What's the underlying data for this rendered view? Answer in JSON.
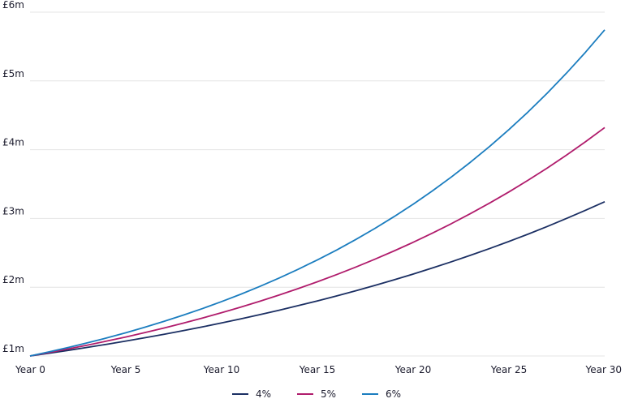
{
  "chart_data": {
    "type": "line",
    "x": [
      0,
      1,
      2,
      3,
      4,
      5,
      6,
      7,
      8,
      9,
      10,
      11,
      12,
      13,
      14,
      15,
      16,
      17,
      18,
      19,
      20,
      21,
      22,
      23,
      24,
      25,
      26,
      27,
      28,
      29,
      30
    ],
    "x_ticks": [
      {
        "value": 0,
        "label": "Year 0"
      },
      {
        "value": 5,
        "label": "Year 5"
      },
      {
        "value": 10,
        "label": "Year 10"
      },
      {
        "value": 15,
        "label": "Year 15"
      },
      {
        "value": 20,
        "label": "Year 20"
      },
      {
        "value": 25,
        "label": "Year 25"
      },
      {
        "value": 30,
        "label": "Year 30"
      }
    ],
    "y_ticks": [
      {
        "value": 1,
        "label": "£1m"
      },
      {
        "value": 2,
        "label": "£2m"
      },
      {
        "value": 3,
        "label": "£3m"
      },
      {
        "value": 4,
        "label": "£4m"
      },
      {
        "value": 5,
        "label": "£5m"
      },
      {
        "value": 6,
        "label": "£6m"
      }
    ],
    "xlim": [
      0,
      30
    ],
    "ylim": [
      1,
      6
    ],
    "grid": "horizontal",
    "legend_position": "bottom-center",
    "series": [
      {
        "name": "4%",
        "color": "#1b2f63",
        "values": [
          1.0,
          1.04,
          1.082,
          1.125,
          1.17,
          1.217,
          1.265,
          1.316,
          1.369,
          1.423,
          1.48,
          1.539,
          1.601,
          1.665,
          1.732,
          1.801,
          1.873,
          1.948,
          2.026,
          2.107,
          2.191,
          2.279,
          2.37,
          2.465,
          2.563,
          2.666,
          2.772,
          2.883,
          2.999,
          3.119,
          3.243
        ]
      },
      {
        "name": "5%",
        "color": "#b01c6c",
        "values": [
          1.0,
          1.05,
          1.103,
          1.158,
          1.216,
          1.276,
          1.34,
          1.407,
          1.477,
          1.551,
          1.629,
          1.71,
          1.796,
          1.886,
          1.98,
          2.079,
          2.183,
          2.292,
          2.407,
          2.527,
          2.653,
          2.786,
          2.925,
          3.072,
          3.225,
          3.386,
          3.556,
          3.733,
          3.92,
          4.116,
          4.322
        ]
      },
      {
        "name": "6%",
        "color": "#1b7dbf",
        "values": [
          1.0,
          1.06,
          1.124,
          1.191,
          1.262,
          1.338,
          1.419,
          1.504,
          1.594,
          1.689,
          1.791,
          1.898,
          2.012,
          2.133,
          2.261,
          2.397,
          2.54,
          2.693,
          2.854,
          3.026,
          3.207,
          3.4,
          3.604,
          3.82,
          4.049,
          4.292,
          4.549,
          4.822,
          5.112,
          5.418,
          5.743
        ]
      }
    ]
  }
}
